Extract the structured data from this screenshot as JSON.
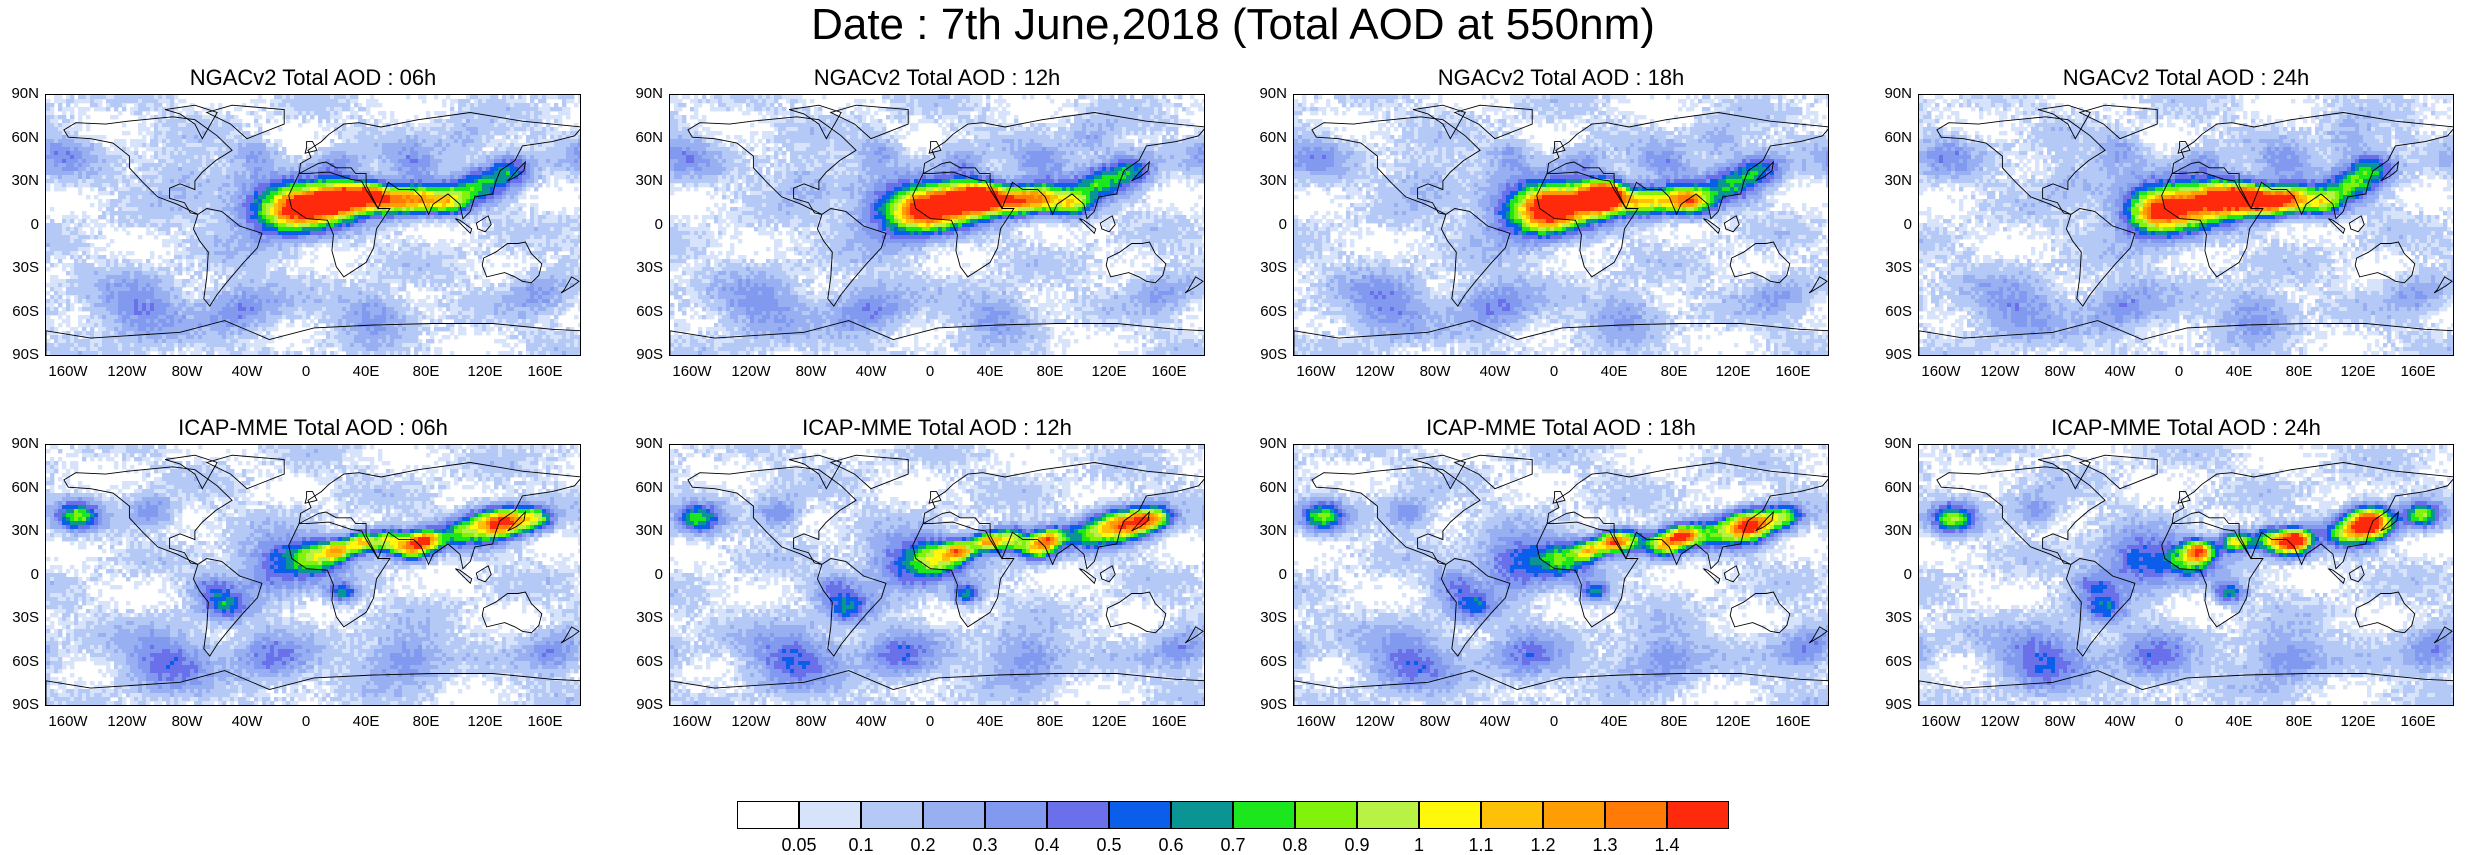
{
  "title": "Date : 7th June,2018 (Total AOD at 550nm)",
  "axes": {
    "lat_labels": [
      "90N",
      "60N",
      "30N",
      "0",
      "30S",
      "60S",
      "90S"
    ],
    "lon_labels": [
      "160W",
      "120W",
      "80W",
      "40W",
      "0",
      "40E",
      "80E",
      "120E",
      "160E"
    ]
  },
  "panels": [
    {
      "title": "NGACv2 Total AOD : 06h",
      "model": "NGACv2",
      "hour": "06h"
    },
    {
      "title": "NGACv2 Total AOD : 12h",
      "model": "NGACv2",
      "hour": "12h"
    },
    {
      "title": "NGACv2 Total AOD : 18h",
      "model": "NGACv2",
      "hour": "18h"
    },
    {
      "title": "NGACv2 Total AOD : 24h",
      "model": "NGACv2",
      "hour": "24h"
    },
    {
      "title": "ICAP-MME Total AOD : 06h",
      "model": "ICAP-MME",
      "hour": "06h"
    },
    {
      "title": "ICAP-MME Total AOD : 12h",
      "model": "ICAP-MME",
      "hour": "12h"
    },
    {
      "title": "ICAP-MME Total AOD : 18h",
      "model": "ICAP-MME",
      "hour": "18h"
    },
    {
      "title": "ICAP-MME Total AOD : 24h",
      "model": "ICAP-MME",
      "hour": "24h"
    }
  ],
  "colorbar": {
    "labels": [
      "0.05",
      "0.1",
      "0.2",
      "0.3",
      "0.4",
      "0.5",
      "0.6",
      "0.7",
      "0.8",
      "0.9",
      "1",
      "1.1",
      "1.2",
      "1.3",
      "1.4"
    ],
    "colors": [
      "#ffffff",
      "#d7e3fa",
      "#b5c9f6",
      "#98b0f2",
      "#8199ef",
      "#6a70ea",
      "#0b5eea",
      "#0b9494",
      "#1ce71c",
      "#80f20c",
      "#b8f245",
      "#fff80a",
      "#ffc107",
      "#ff9d04",
      "#ff7a06",
      "#ff2a0c"
    ]
  }
}
